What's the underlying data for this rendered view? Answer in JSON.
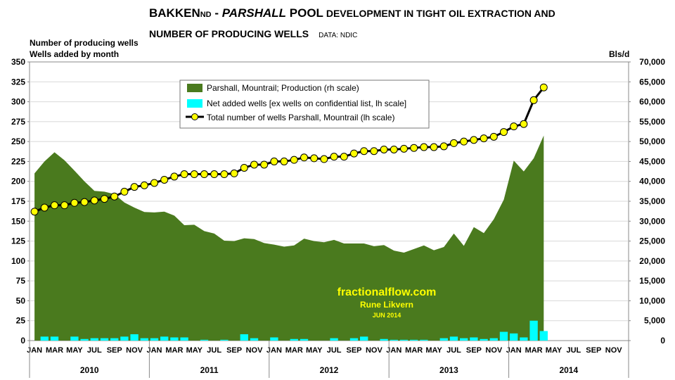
{
  "title": {
    "prefix": "BAKKEN",
    "subscript": "ND",
    "dash": " - ",
    "italic_word": "PARSHALL",
    "pool": " POOL",
    "rest_line1": " DEVELOPMENT IN TIGHT OIL EXTRACTION AND",
    "line2": "NUMBER OF PRODUCING WELLS",
    "data_source": "DATA: NDIC"
  },
  "watermark": {
    "site": "fractionalflow.com",
    "author": "Rune Likvern",
    "date": "JUN 2014"
  },
  "colors": {
    "production": "#4a7a1e",
    "added_wells": "#00ffff",
    "total_wells_marker": "#ffff00",
    "total_wells_line": "#000000",
    "plot_bg": "#ffffff"
  },
  "chart_data": {
    "type": "area+bar+line",
    "left_axis_title_1": "Number of producing wells",
    "left_axis_title_2": "Wells added by month",
    "right_axis_title": "Bls/d",
    "ylim_left": [
      0,
      350
    ],
    "ylim_right": [
      0,
      70000
    ],
    "yticks_left": [
      "0",
      "25",
      "50",
      "75",
      "100",
      "125",
      "150",
      "175",
      "200",
      "225",
      "250",
      "275",
      "300",
      "325",
      "350"
    ],
    "yticks_right": [
      "0",
      "5,000",
      "10,000",
      "15,000",
      "20,000",
      "25,000",
      "30,000",
      "35,000",
      "40,000",
      "45,000",
      "50,000",
      "55,000",
      "60,000",
      "65,000",
      "70,000"
    ],
    "month_labels": [
      "JAN",
      "",
      "MAR",
      "",
      "MAY",
      "",
      "JUL",
      "",
      "SEP",
      "",
      "NOV",
      ""
    ],
    "years": [
      "2010",
      "2011",
      "2012",
      "2013",
      "2014"
    ],
    "legend": [
      "Parshall, Mountrail; Production (rh scale)",
      "Net added wells [ex wells on confidential list, lh scale]",
      "Total number of wells Parshall, Mountrail (lh scale)"
    ],
    "series": [
      {
        "name": "Parshall, Mountrail; Production (rh scale)",
        "axis": "right",
        "values": [
          42000,
          45000,
          47300,
          45300,
          42700,
          40000,
          37600,
          37400,
          36800,
          34700,
          33400,
          32300,
          32200,
          32400,
          31400,
          29000,
          29100,
          27500,
          26900,
          25100,
          25000,
          25700,
          25500,
          24500,
          24100,
          23600,
          23900,
          25600,
          25000,
          24700,
          25300,
          24400,
          24400,
          24400,
          23700,
          24000,
          22600,
          22100,
          23000,
          23900,
          22700,
          23500,
          26900,
          23800,
          28500,
          27000,
          30500,
          35400,
          45200,
          42500,
          45800,
          51500
        ]
      },
      {
        "name": "Net added wells [ex wells on confidential list, lh scale]",
        "axis": "left",
        "values": [
          0,
          5,
          5,
          0,
          5,
          2,
          3,
          3,
          3,
          5,
          8,
          3,
          3,
          5,
          4,
          4,
          0,
          1,
          0,
          1,
          0,
          8,
          3,
          0,
          4,
          0,
          2,
          2,
          0,
          0,
          3,
          0,
          3,
          5,
          0,
          2,
          1,
          1,
          1,
          1,
          0,
          3,
          5,
          3,
          4,
          2,
          3,
          11,
          9,
          4,
          25,
          12
        ]
      },
      {
        "name": "Total number of wells Parshall, Mountrail (lh scale)",
        "axis": "left",
        "values": [
          162,
          167,
          170,
          170,
          173,
          174,
          176,
          178,
          181,
          187,
          193,
          195,
          198,
          202,
          206,
          209,
          209,
          209,
          209,
          209,
          210,
          217,
          221,
          221,
          225,
          225,
          227,
          230,
          229,
          228,
          231,
          231,
          235,
          238,
          238,
          240,
          240,
          241,
          242,
          243,
          243,
          244,
          248,
          250,
          252,
          254,
          256,
          262,
          269,
          272,
          302,
          318
        ]
      }
    ]
  }
}
